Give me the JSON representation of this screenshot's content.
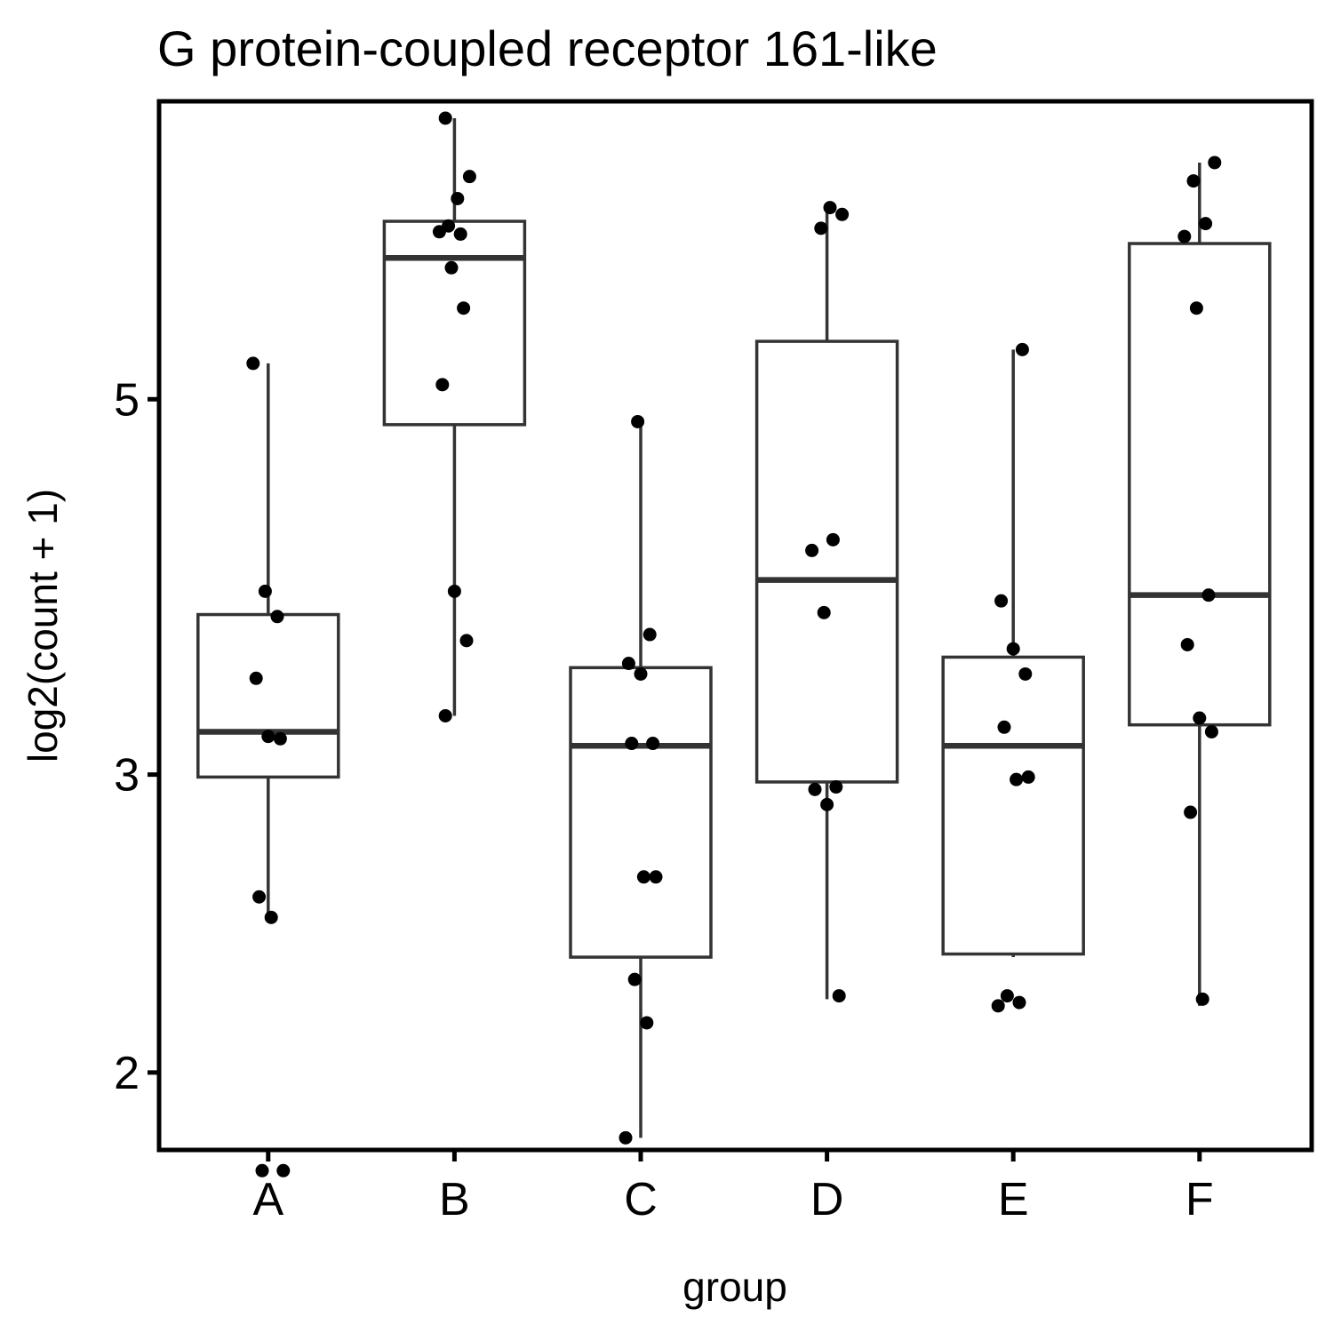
{
  "chart_data": {
    "type": "box",
    "title": "G protein-coupled receptor 161-like",
    "xlabel": "group",
    "ylabel": "log2(count + 1)",
    "y_scale": "log",
    "ylim": [
      1.8,
      7.5
    ],
    "yticks": [
      2,
      3,
      5
    ],
    "categories": [
      "A",
      "B",
      "C",
      "D",
      "E",
      "F"
    ],
    "boxes": [
      {
        "group": "A",
        "whisker_low": 2.47,
        "q1": 2.99,
        "median": 3.18,
        "q3": 3.73,
        "whisker_high": 5.25
      },
      {
        "group": "B",
        "whisker_low": 3.25,
        "q1": 4.83,
        "median": 6.06,
        "q3": 6.37,
        "whisker_high": 7.33
      },
      {
        "group": "C",
        "whisker_low": 1.83,
        "q1": 2.34,
        "median": 3.12,
        "q3": 3.47,
        "whisker_high": 4.85
      },
      {
        "group": "D",
        "whisker_low": 2.21,
        "q1": 2.97,
        "median": 3.91,
        "q3": 5.41,
        "whisker_high": 6.49
      },
      {
        "group": "E",
        "whisker_low": 2.34,
        "q1": 2.35,
        "median": 3.12,
        "q3": 3.52,
        "whisker_high": 5.35
      },
      {
        "group": "F",
        "whisker_low": 2.19,
        "q1": 3.21,
        "median": 3.83,
        "q3": 6.18,
        "whisker_high": 6.9
      }
    ],
    "points": [
      {
        "group": "A",
        "values": [
          5.25,
          3.85,
          3.72,
          3.42,
          3.16,
          3.15,
          2.54,
          2.47,
          1.75,
          1.75
        ]
      },
      {
        "group": "B",
        "values": [
          7.33,
          6.57,
          6.77,
          6.33,
          6.26,
          6.28,
          5.98,
          5.66,
          5.1,
          3.85,
          3.6,
          3.25
        ]
      },
      {
        "group": "C",
        "values": [
          4.85,
          3.63,
          3.49,
          3.44,
          3.13,
          3.13,
          2.61,
          2.61,
          2.27,
          2.14,
          1.83
        ]
      },
      {
        "group": "D",
        "values": [
          6.49,
          6.43,
          6.31,
          4.13,
          4.07,
          3.74,
          2.95,
          2.94,
          2.88,
          2.22
        ]
      },
      {
        "group": "E",
        "values": [
          5.35,
          3.8,
          3.56,
          3.44,
          3.2,
          2.98,
          2.99,
          2.22,
          2.2,
          2.19
        ]
      },
      {
        "group": "F",
        "values": [
          6.9,
          6.73,
          6.35,
          6.24,
          5.66,
          3.83,
          3.58,
          3.24,
          3.18,
          2.85,
          2.21
        ]
      }
    ],
    "grid": false,
    "legend": "none"
  }
}
